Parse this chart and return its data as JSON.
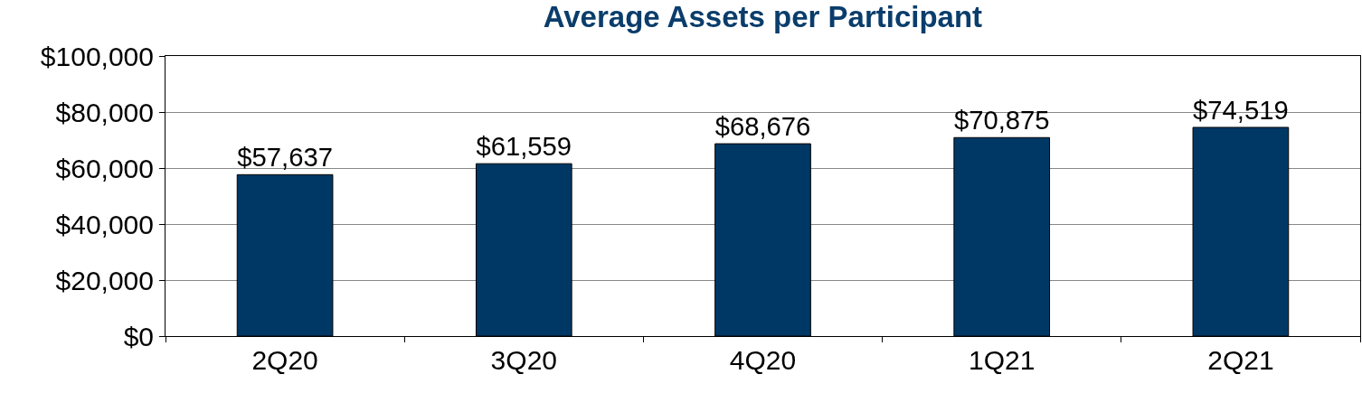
{
  "chart_data": {
    "type": "bar",
    "title": "Average Assets per Participant",
    "categories": [
      "2Q20",
      "3Q20",
      "4Q20",
      "1Q21",
      "2Q21"
    ],
    "values": [
      57637,
      61559,
      68676,
      70875,
      74519
    ],
    "value_labels": [
      "$57,637",
      "$61,559",
      "$68,676",
      "$70,875",
      "$74,519"
    ],
    "color": "#003865",
    "ylim": [
      0,
      100000
    ],
    "yticks": [
      {
        "value": 0,
        "label": "$0"
      },
      {
        "value": 20000,
        "label": "$20,000"
      },
      {
        "value": 40000,
        "label": "$40,000"
      },
      {
        "value": 60000,
        "label": "$60,000"
      },
      {
        "value": 80000,
        "label": "$80,000"
      },
      {
        "value": 100000,
        "label": "$100,000"
      }
    ],
    "grid": "y"
  }
}
